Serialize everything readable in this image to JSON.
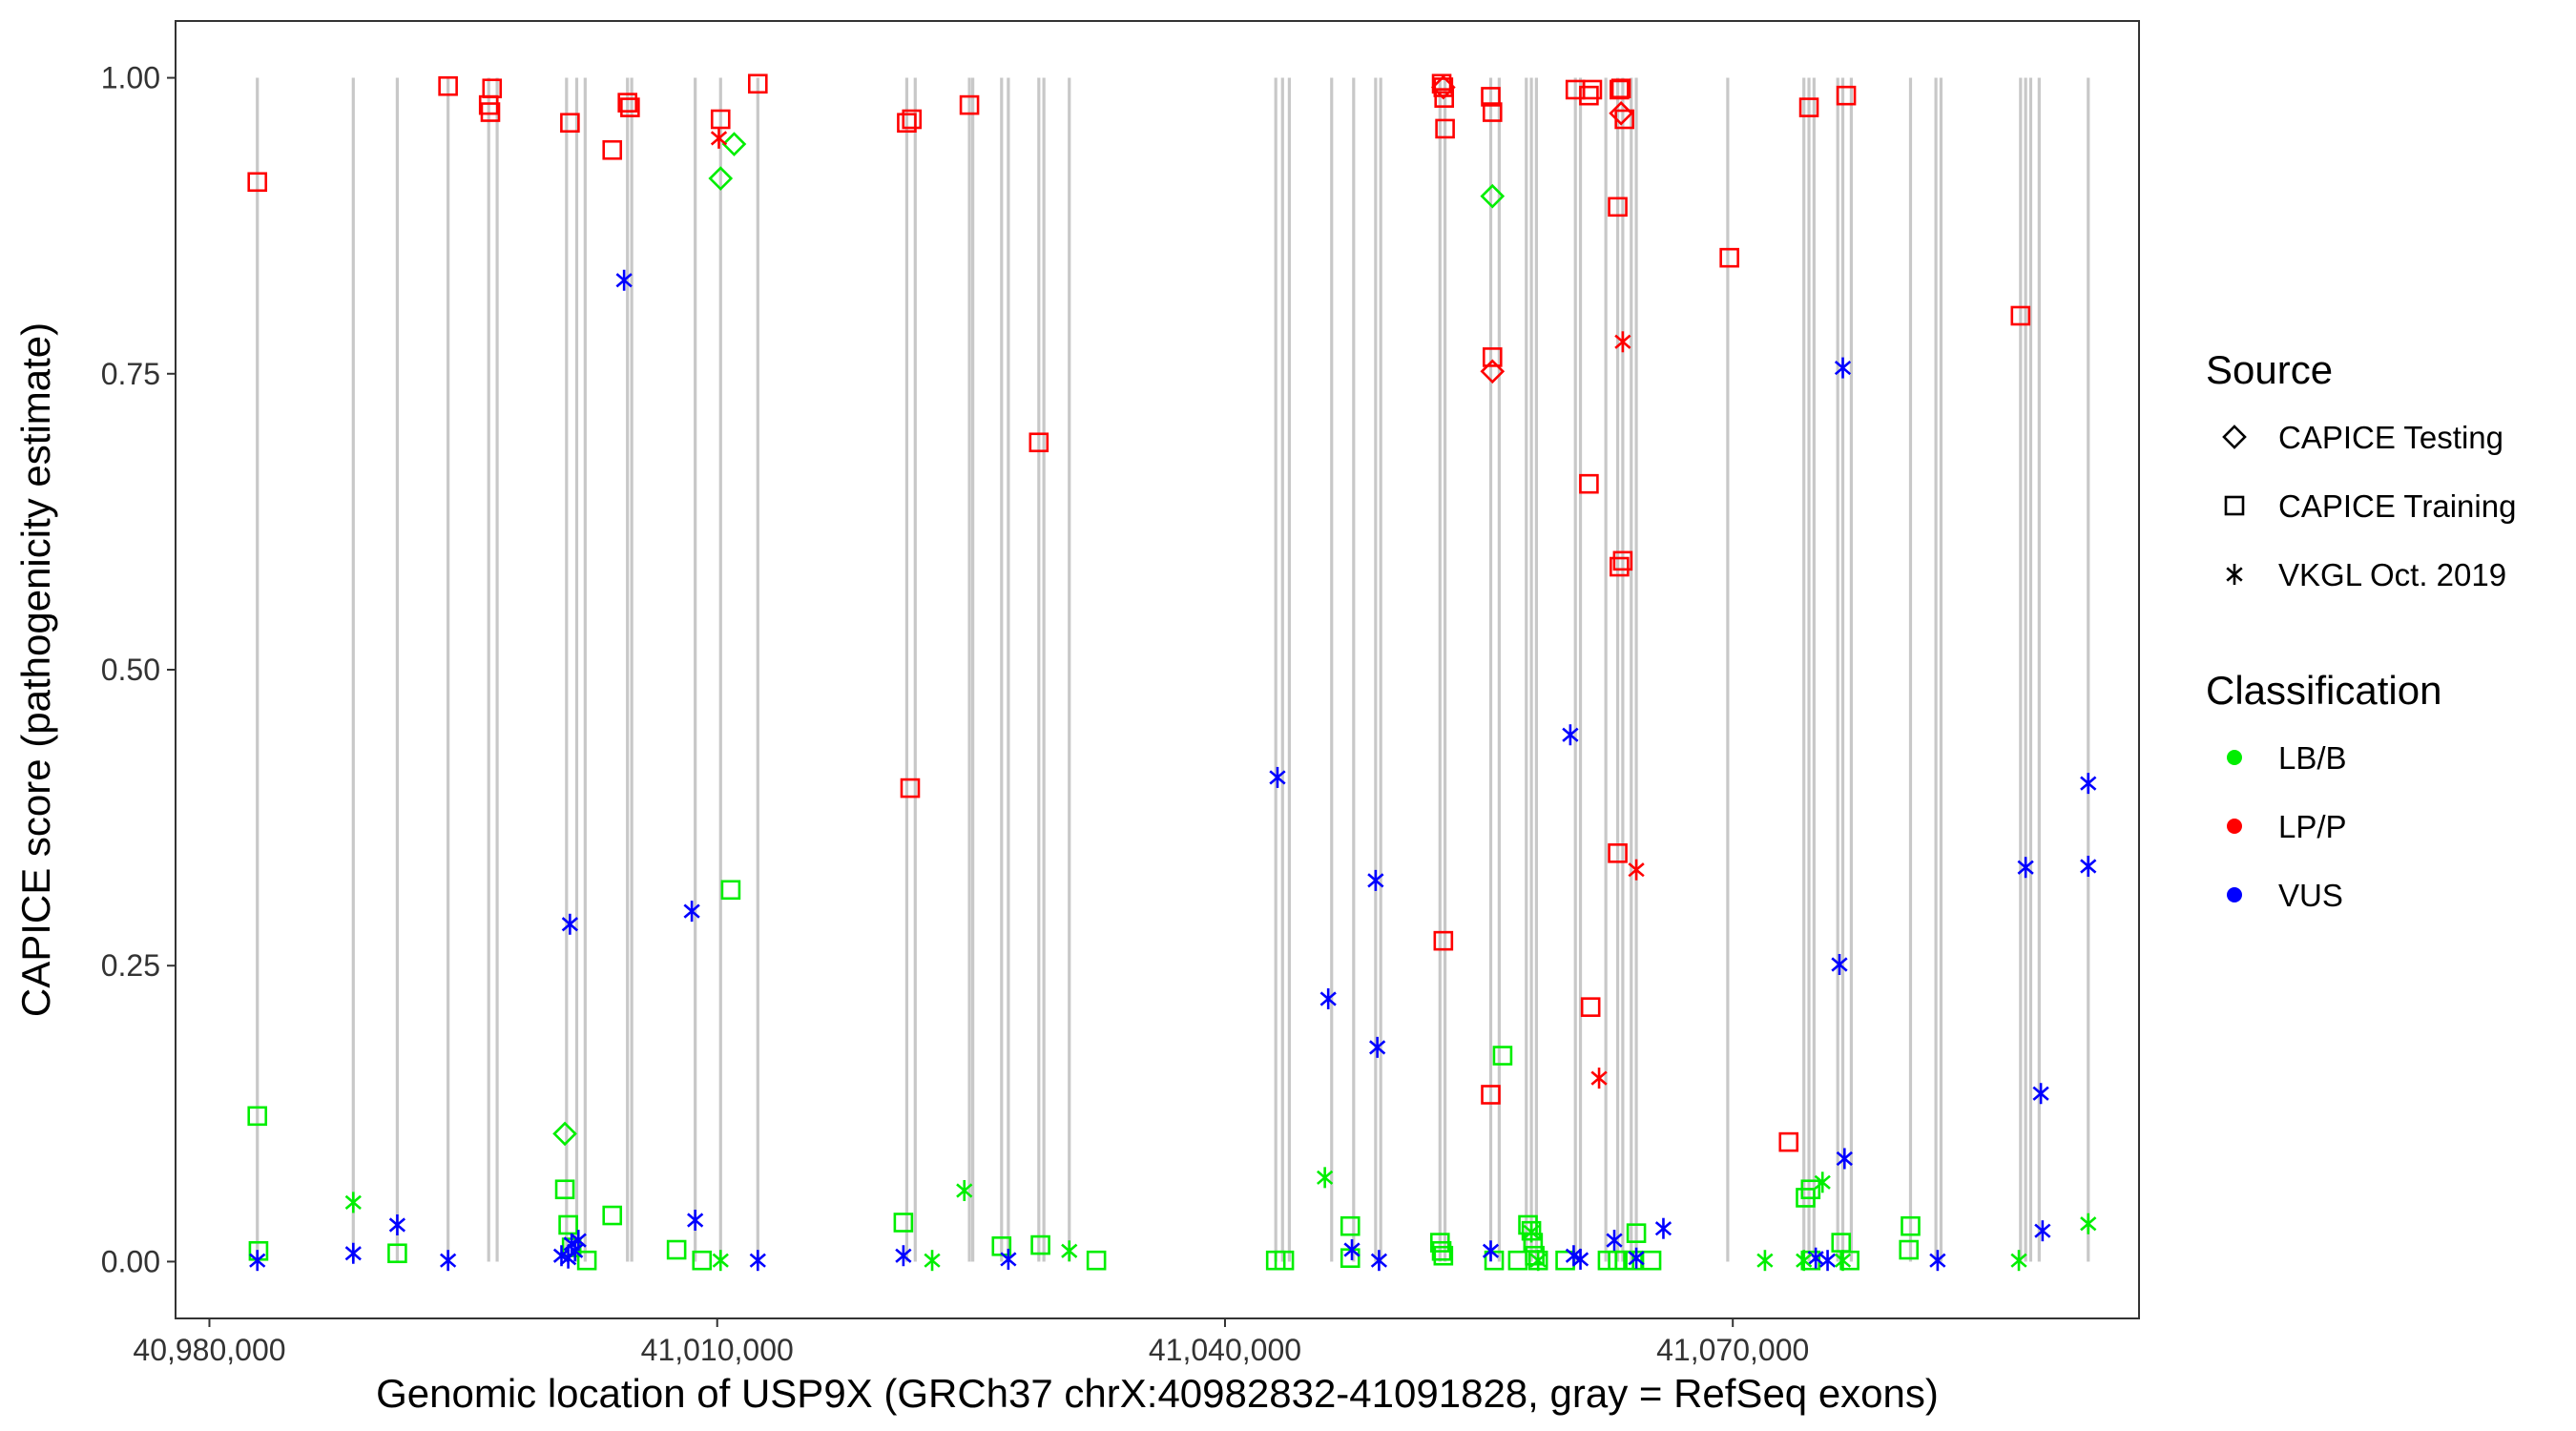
{
  "chart_data": {
    "type": "scatter",
    "xlabel": "Genomic location of USP9X (GRCh37 chrX:40982832-41091828, gray = RefSeq exons)",
    "ylabel": "CAPICE score (pathogenicity estimate)",
    "xlim": [
      40978000,
      41094000
    ],
    "ylim": [
      -0.048,
      1.048
    ],
    "x_ticks": [
      40980000,
      41010000,
      41040000,
      41070000
    ],
    "x_tick_labels": [
      "40,980,000",
      "41,010,000",
      "41,040,000",
      "41,070,000"
    ],
    "y_ticks": [
      0,
      0.25,
      0.5,
      0.75,
      1.0
    ],
    "y_tick_labels": [
      "0.00",
      "0.25",
      "0.50",
      "0.75",
      "1.00"
    ],
    "exons": [
      40982832,
      40988500,
      40991100,
      40994100,
      40996500,
      40997000,
      41001100,
      41001700,
      41002200,
      41004700,
      41004950,
      41008700,
      41010200,
      41012400,
      41021200,
      41021700,
      41024900,
      41025100,
      41026800,
      41027200,
      41029000,
      41029300,
      41030800,
      41043000,
      41043400,
      41043800,
      41046300,
      41047600,
      41048900,
      41049200,
      41052700,
      41053000,
      41055700,
      41056200,
      41057800,
      41058100,
      41058400,
      41060700,
      41061000,
      41062500,
      41063200,
      41063500,
      41064000,
      41064300,
      41069700,
      41074200,
      41074500,
      41074800,
      41076200,
      41076500,
      41077000,
      41080500,
      41082000,
      41082300,
      41087000,
      41087300,
      41087600,
      41088100,
      41091000
    ],
    "legend": [
      {
        "title": "Source",
        "items": [
          {
            "label": "CAPICE Testing",
            "shape": "diamond"
          },
          {
            "label": "CAPICE Training",
            "shape": "square"
          },
          {
            "label": "VKGL Oct. 2019",
            "shape": "asterisk"
          }
        ]
      },
      {
        "title": "Classification",
        "items": [
          {
            "label": "LB/B",
            "color": "#00ee00"
          },
          {
            "label": "LP/P",
            "color": "#ff0000"
          },
          {
            "label": "VUS",
            "color": "#0000ff"
          }
        ]
      }
    ],
    "colors": {
      "LB/B": "#00ee00",
      "LP/P": "#ff0000",
      "VUS": "#0000ff"
    },
    "series": [
      {
        "name": "CAPICE Training · LP/P",
        "shape": "square",
        "class": "LP/P",
        "points": [
          [
            40982832,
            0.912
          ],
          [
            40994100,
            0.993
          ],
          [
            40996500,
            0.977
          ],
          [
            40996600,
            0.971
          ],
          [
            40996700,
            0.991
          ],
          [
            41001300,
            0.962
          ],
          [
            41003800,
            0.939
          ],
          [
            41004700,
            0.979
          ],
          [
            41004850,
            0.975
          ],
          [
            41010200,
            0.965
          ],
          [
            41012400,
            0.995
          ],
          [
            41021200,
            0.962
          ],
          [
            41021500,
            0.965
          ],
          [
            41021400,
            0.4
          ],
          [
            41024900,
            0.977
          ],
          [
            41029000,
            0.692
          ],
          [
            41052800,
            0.995
          ],
          [
            41052900,
            0.992
          ],
          [
            41052950,
            0.983
          ],
          [
            41053000,
            0.957
          ],
          [
            41052900,
            0.271
          ],
          [
            41055700,
            0.984
          ],
          [
            41055800,
            0.971
          ],
          [
            41055800,
            0.764
          ],
          [
            41055700,
            0.141
          ],
          [
            41060700,
            0.99
          ],
          [
            41061500,
            0.985
          ],
          [
            41061700,
            0.99
          ],
          [
            41061500,
            0.657
          ],
          [
            41061600,
            0.215
          ],
          [
            41063200,
            0.891
          ],
          [
            41063300,
            0.99
          ],
          [
            41063400,
            0.991
          ],
          [
            41063600,
            0.965
          ],
          [
            41063500,
            0.592
          ],
          [
            41063300,
            0.587
          ],
          [
            41063200,
            0.345
          ],
          [
            41069800,
            0.848
          ],
          [
            41073300,
            0.101
          ],
          [
            41074500,
            0.975
          ],
          [
            41076700,
            0.985
          ],
          [
            41087000,
            0.799
          ]
        ]
      },
      {
        "name": "CAPICE Training · LB/B",
        "shape": "square",
        "class": "LB/B",
        "points": [
          [
            40982832,
            0.123
          ],
          [
            40982900,
            0.009
          ],
          [
            40991100,
            0.007
          ],
          [
            41001000,
            0.061
          ],
          [
            41001200,
            0.031
          ],
          [
            41001400,
            0.012
          ],
          [
            41002300,
            0.001
          ],
          [
            41003800,
            0.039
          ],
          [
            41007600,
            0.01
          ],
          [
            41009100,
            0.001
          ],
          [
            41010800,
            0.314
          ],
          [
            41021000,
            0.033
          ],
          [
            41026800,
            0.013
          ],
          [
            41029100,
            0.014
          ],
          [
            41032400,
            0.001
          ],
          [
            41043000,
            0.001
          ],
          [
            41043500,
            0.001
          ],
          [
            41047400,
            0.03
          ],
          [
            41047400,
            0.003
          ],
          [
            41052700,
            0.016
          ],
          [
            41052800,
            0.009
          ],
          [
            41052900,
            0.005
          ],
          [
            41056400,
            0.174
          ],
          [
            41055900,
            0.001
          ],
          [
            41057300,
            0.001
          ],
          [
            41057900,
            0.031
          ],
          [
            41058100,
            0.026
          ],
          [
            41058200,
            0.016
          ],
          [
            41058300,
            0.005
          ],
          [
            41058500,
            0.001
          ],
          [
            41060100,
            0.001
          ],
          [
            41062600,
            0.001
          ],
          [
            41063200,
            0.001
          ],
          [
            41063600,
            0.001
          ],
          [
            41064100,
            0.001
          ],
          [
            41064300,
            0.024
          ],
          [
            41065200,
            0.001
          ],
          [
            41074300,
            0.054
          ],
          [
            41074600,
            0.061
          ],
          [
            41074600,
            0.001
          ],
          [
            41076400,
            0.016
          ],
          [
            41076900,
            0.001
          ],
          [
            41080500,
            0.03
          ],
          [
            41080400,
            0.01
          ]
        ]
      },
      {
        "name": "CAPICE Testing · LP/P",
        "shape": "diamond",
        "class": "LP/P",
        "points": [
          [
            41052900,
            0.992
          ],
          [
            41055800,
            0.752
          ],
          [
            41063400,
            0.97
          ]
        ]
      },
      {
        "name": "CAPICE Testing · LB/B",
        "shape": "diamond",
        "class": "LB/B",
        "points": [
          [
            41001000,
            0.108
          ],
          [
            41010200,
            0.915
          ],
          [
            41011000,
            0.944
          ],
          [
            41055800,
            0.9
          ]
        ]
      },
      {
        "name": "VKGL Oct. 2019 · VUS",
        "shape": "asterisk",
        "class": "VUS",
        "points": [
          [
            40982832,
            0.001
          ],
          [
            40988500,
            0.007
          ],
          [
            40991100,
            0.031
          ],
          [
            40994100,
            0.001
          ],
          [
            41000800,
            0.005
          ],
          [
            41001200,
            0.003
          ],
          [
            41001400,
            0.015
          ],
          [
            41001600,
            0.009
          ],
          [
            41001800,
            0.018
          ],
          [
            41001300,
            0.285
          ],
          [
            41004500,
            0.829
          ],
          [
            41008500,
            0.296
          ],
          [
            41008700,
            0.035
          ],
          [
            41012400,
            0.001
          ],
          [
            41021000,
            0.005
          ],
          [
            41027200,
            0.002
          ],
          [
            41043100,
            0.409
          ],
          [
            41046100,
            0.222
          ],
          [
            41047500,
            0.01
          ],
          [
            41048900,
            0.322
          ],
          [
            41049000,
            0.181
          ],
          [
            41049100,
            0.001
          ],
          [
            41055700,
            0.009
          ],
          [
            41060400,
            0.445
          ],
          [
            41060600,
            0.005
          ],
          [
            41061000,
            0.002
          ],
          [
            41063000,
            0.018
          ],
          [
            41064300,
            0.003
          ],
          [
            41065900,
            0.028
          ],
          [
            41074900,
            0.003
          ],
          [
            41075600,
            0.001
          ],
          [
            41076300,
            0.251
          ],
          [
            41076500,
            0.755
          ],
          [
            41076600,
            0.087
          ],
          [
            41082100,
            0.001
          ],
          [
            41087300,
            0.333
          ],
          [
            41088200,
            0.142
          ],
          [
            41088300,
            0.026
          ],
          [
            41091000,
            0.404
          ],
          [
            41091000,
            0.334
          ]
        ]
      },
      {
        "name": "VKGL Oct. 2019 · LB/B",
        "shape": "asterisk",
        "class": "LB/B",
        "points": [
          [
            40988500,
            0.05
          ],
          [
            41010200,
            0.001
          ],
          [
            41022700,
            0.001
          ],
          [
            41024600,
            0.06
          ],
          [
            41030800,
            0.009
          ],
          [
            41045900,
            0.071
          ],
          [
            41058100,
            0.025
          ],
          [
            41058500,
            0.001
          ],
          [
            41071900,
            0.001
          ],
          [
            41074200,
            0.001
          ],
          [
            41075300,
            0.067
          ],
          [
            41076500,
            0.001
          ],
          [
            41086900,
            0.001
          ],
          [
            41091000,
            0.032
          ]
        ]
      },
      {
        "name": "VKGL Oct. 2019 · LP/P",
        "shape": "asterisk",
        "class": "LP/P",
        "points": [
          [
            41010100,
            0.949
          ],
          [
            41062100,
            0.155
          ],
          [
            41063500,
            0.777
          ],
          [
            41064300,
            0.331
          ]
        ]
      }
    ]
  }
}
